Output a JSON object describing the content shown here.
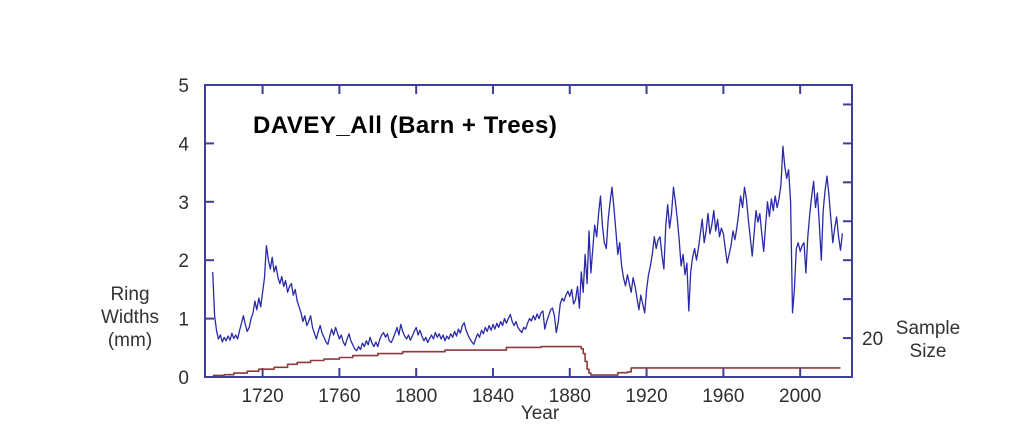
{
  "title": "DAVEY_All (Barn + Trees)",
  "axes": {
    "x": {
      "label": "Year",
      "ticks": [
        1720,
        1760,
        1800,
        1840,
        1880,
        1920,
        1960,
        2000
      ],
      "range": [
        1690,
        2027
      ]
    },
    "y_left": {
      "label_lines": [
        "Ring",
        "Widths",
        "(mm)"
      ],
      "ticks": [
        0,
        1,
        2,
        3,
        4,
        5
      ],
      "range": [
        0,
        5
      ]
    },
    "y_right": {
      "label_lines": [
        "Sample",
        "Size"
      ],
      "tick_values": [
        20,
        40,
        60,
        80,
        100,
        120,
        140
      ],
      "labeled_tick": 20,
      "range": [
        0,
        150
      ]
    }
  },
  "colors": {
    "background": "#ffffff",
    "frame": "#3f3f99",
    "ring_series": "#2a2aa8",
    "sample_series": "#8e3a3a",
    "tick_text": "#2f2f2f",
    "title_text": "#000000"
  },
  "chart_data": {
    "type": "line",
    "title": "DAVEY_All (Barn + Trees)",
    "xlabel": "Year",
    "ylabel_left": "Ring Widths (mm)",
    "ylabel_right": "Sample Size",
    "x_range": [
      1690,
      2027
    ],
    "y_left_range": [
      0,
      5
    ],
    "y_right_range": [
      0,
      150
    ],
    "grid": false,
    "legend": "none",
    "series": [
      {
        "name": "ring_widths_mm",
        "axis": "left",
        "mode": "line",
        "start_year": 1694,
        "step": 1,
        "values": [
          1.8,
          1.05,
          0.8,
          0.65,
          0.72,
          0.6,
          0.68,
          0.62,
          0.7,
          0.63,
          0.75,
          0.66,
          0.72,
          0.65,
          0.8,
          0.92,
          1.05,
          0.9,
          0.78,
          0.85,
          1.0,
          1.1,
          1.3,
          1.15,
          1.35,
          1.2,
          1.45,
          1.7,
          2.25,
          2.0,
          1.85,
          2.05,
          1.8,
          1.9,
          1.7,
          1.6,
          1.72,
          1.55,
          1.65,
          1.45,
          1.55,
          1.6,
          1.4,
          1.5,
          1.3,
          1.2,
          1.1,
          0.95,
          1.05,
          0.88,
          0.95,
          1.05,
          0.85,
          0.75,
          0.65,
          0.78,
          0.88,
          0.75,
          0.68,
          0.6,
          0.56,
          0.7,
          0.82,
          0.72,
          0.85,
          0.75,
          0.65,
          0.72,
          0.6,
          0.54,
          0.65,
          0.74,
          0.62,
          0.55,
          0.48,
          0.45,
          0.52,
          0.47,
          0.58,
          0.52,
          0.62,
          0.55,
          0.68,
          0.58,
          0.52,
          0.6,
          0.52,
          0.64,
          0.72,
          0.76,
          0.68,
          0.74,
          0.62,
          0.59,
          0.66,
          0.75,
          0.85,
          0.72,
          0.9,
          0.78,
          0.7,
          0.65,
          0.72,
          0.63,
          0.7,
          0.78,
          0.85,
          0.72,
          0.8,
          0.7,
          0.62,
          0.68,
          0.59,
          0.66,
          0.72,
          0.65,
          0.76,
          0.68,
          0.74,
          0.65,
          0.72,
          0.62,
          0.7,
          0.65,
          0.74,
          0.68,
          0.78,
          0.7,
          0.82,
          0.75,
          0.88,
          0.93,
          0.8,
          0.72,
          0.65,
          0.6,
          0.56,
          0.66,
          0.74,
          0.68,
          0.8,
          0.74,
          0.85,
          0.78,
          0.88,
          0.8,
          0.9,
          0.82,
          0.92,
          0.85,
          0.95,
          0.88,
          1.0,
          0.92,
          1.0,
          1.07,
          0.95,
          0.88,
          0.95,
          0.85,
          0.8,
          0.76,
          0.85,
          0.82,
          0.92,
          1.0,
          0.96,
          1.05,
          0.98,
          1.08,
          1.0,
          1.1,
          1.13,
          0.82,
          0.95,
          1.05,
          1.15,
          1.18,
          1.05,
          0.76,
          0.95,
          1.25,
          1.35,
          1.3,
          1.4,
          1.47,
          1.38,
          1.5,
          1.25,
          1.32,
          1.55,
          1.18,
          1.8,
          1.45,
          2.1,
          1.6,
          2.5,
          1.78,
          2.2,
          2.6,
          2.4,
          2.8,
          3.1,
          2.6,
          2.3,
          2.2,
          2.7,
          3.0,
          3.25,
          2.9,
          2.5,
          2.1,
          2.3,
          1.9,
          1.7,
          1.56,
          1.75,
          1.6,
          1.45,
          1.7,
          1.55,
          1.35,
          1.15,
          1.4,
          1.25,
          1.1,
          1.5,
          1.75,
          1.9,
          2.1,
          2.4,
          2.2,
          2.35,
          2.4,
          2.1,
          1.85,
          2.6,
          2.95,
          2.55,
          2.8,
          3.25,
          3.0,
          2.7,
          2.35,
          1.9,
          2.1,
          1.75,
          1.95,
          1.13,
          1.8,
          2.05,
          2.2,
          2.0,
          2.2,
          2.45,
          2.7,
          2.3,
          2.5,
          2.8,
          2.45,
          2.6,
          2.85,
          2.5,
          2.7,
          2.4,
          2.55,
          2.45,
          2.2,
          1.95,
          2.1,
          2.25,
          2.5,
          2.35,
          2.55,
          2.8,
          3.1,
          2.9,
          3.25,
          3.05,
          2.7,
          2.4,
          2.07,
          2.45,
          2.85,
          2.65,
          2.8,
          2.45,
          2.15,
          2.6,
          3.0,
          2.75,
          3.05,
          2.85,
          3.1,
          2.9,
          3.05,
          3.3,
          3.95,
          3.6,
          3.4,
          3.55,
          3.0,
          1.1,
          1.5,
          2.2,
          2.3,
          2.15,
          2.25,
          2.3,
          1.78,
          2.4,
          2.8,
          3.1,
          3.35,
          2.9,
          3.15,
          2.6,
          2.0,
          2.85,
          3.2,
          3.44,
          3.1,
          2.7,
          2.3,
          2.55,
          2.74,
          2.4,
          2.17,
          2.46
        ]
      },
      {
        "name": "sample_size",
        "axis": "right",
        "mode": "step",
        "points": [
          [
            1694,
            0.8
          ],
          [
            1700,
            1.2
          ],
          [
            1705,
            2
          ],
          [
            1712,
            3
          ],
          [
            1718,
            4
          ],
          [
            1726,
            5
          ],
          [
            1733,
            6.5
          ],
          [
            1738,
            7.5
          ],
          [
            1745,
            8.5
          ],
          [
            1752,
            9.2
          ],
          [
            1760,
            10
          ],
          [
            1767,
            11
          ],
          [
            1780,
            12
          ],
          [
            1793,
            13
          ],
          [
            1815,
            13.8
          ],
          [
            1847,
            15.2
          ],
          [
            1865,
            15.6
          ],
          [
            1884,
            15.6
          ],
          [
            1886,
            14.5
          ],
          [
            1887,
            12
          ],
          [
            1888,
            8
          ],
          [
            1889,
            4
          ],
          [
            1890,
            2
          ],
          [
            1891,
            1
          ],
          [
            1903,
            1
          ],
          [
            1905,
            2.2
          ],
          [
            1910,
            2.6
          ],
          [
            1912,
            4.7
          ],
          [
            2021,
            4.7
          ]
        ]
      }
    ]
  }
}
